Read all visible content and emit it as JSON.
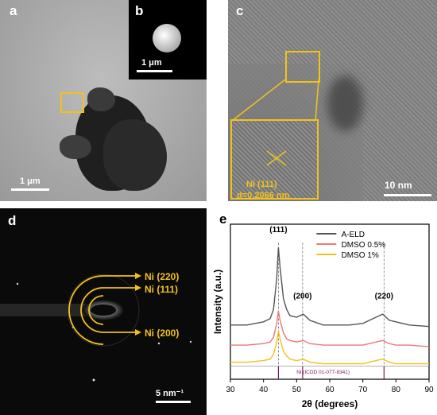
{
  "panels": {
    "a": {
      "label": "a",
      "scale": "1 μm"
    },
    "b": {
      "label": "b",
      "scale": "1 μm"
    },
    "c": {
      "label": "c",
      "scale": "10 nm",
      "zoom_text_1": "Ni (111)",
      "zoom_text_2": "d=0.2066 nm"
    },
    "d": {
      "label": "d",
      "scale": "5 nm⁻¹",
      "ring_labels": [
        "Ni (220)",
        "Ni (111)",
        "Ni (200)"
      ]
    },
    "e": {
      "label": "e"
    }
  },
  "colors": {
    "accent_yellow": "#f2c21a",
    "aeld": "#555555",
    "dmso05": "#e87a7a",
    "dmso1": "#f2c21a",
    "ref": "#7a1f5a"
  },
  "chart_data": {
    "type": "line",
    "title": "",
    "xlabel": "2θ (degrees)",
    "ylabel": "Intensity (a.u.)",
    "xlim": [
      30,
      90
    ],
    "xticks": [
      30,
      40,
      50,
      60,
      70,
      80,
      90
    ],
    "legend": "top-right",
    "series": [
      {
        "name": "A-ELD",
        "color": "#555555",
        "x": [
          30,
          35,
          40,
          42,
          43,
          44,
          44.5,
          45,
          46,
          47,
          48,
          50,
          52,
          54,
          58,
          62,
          66,
          70,
          72,
          74,
          76,
          77,
          78,
          80,
          84,
          90
        ],
        "y": [
          0.35,
          0.35,
          0.37,
          0.39,
          0.45,
          0.65,
          0.85,
          0.72,
          0.52,
          0.45,
          0.41,
          0.4,
          0.42,
          0.38,
          0.35,
          0.35,
          0.35,
          0.36,
          0.38,
          0.4,
          0.42,
          0.4,
          0.38,
          0.37,
          0.35,
          0.34
        ]
      },
      {
        "name": "DMSO 0.5%",
        "color": "#e87a7a",
        "x": [
          30,
          35,
          40,
          42,
          43,
          44,
          44.5,
          45,
          46,
          47,
          48,
          50,
          52,
          54,
          58,
          62,
          66,
          70,
          72,
          74,
          76,
          77,
          78,
          80,
          84,
          90
        ],
        "y": [
          0.22,
          0.22,
          0.23,
          0.24,
          0.27,
          0.36,
          0.44,
          0.38,
          0.3,
          0.26,
          0.25,
          0.24,
          0.25,
          0.23,
          0.22,
          0.22,
          0.22,
          0.22,
          0.23,
          0.24,
          0.25,
          0.24,
          0.23,
          0.22,
          0.22,
          0.21
        ]
      },
      {
        "name": "DMSO 1%",
        "color": "#f2c21a",
        "x": [
          30,
          35,
          40,
          42,
          43,
          44,
          44.5,
          45,
          46,
          47,
          48,
          50,
          52,
          54,
          58,
          62,
          66,
          70,
          72,
          74,
          76,
          77,
          78,
          80,
          84,
          90
        ],
        "y": [
          0.11,
          0.11,
          0.12,
          0.13,
          0.16,
          0.24,
          0.31,
          0.26,
          0.18,
          0.15,
          0.13,
          0.12,
          0.13,
          0.11,
          0.1,
          0.1,
          0.1,
          0.1,
          0.11,
          0.12,
          0.13,
          0.12,
          0.11,
          0.1,
          0.1,
          0.1
        ]
      }
    ],
    "peaks": [
      {
        "label": "(111)",
        "x": 44.5
      },
      {
        "label": "(200)",
        "x": 51.8
      },
      {
        "label": "(220)",
        "x": 76.4
      }
    ],
    "reference": {
      "label": "Ni (ICDD 01-077-8341)",
      "x": [
        44.5,
        51.8,
        76.4
      ]
    }
  }
}
